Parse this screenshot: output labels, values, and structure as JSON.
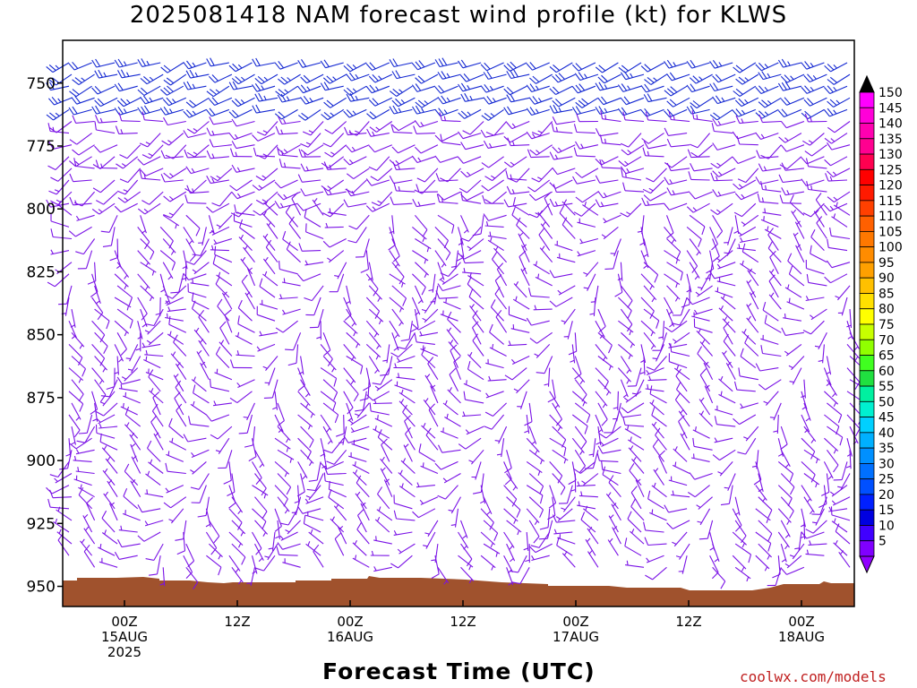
{
  "chart_data": {
    "type": "wind_barb_time_height",
    "title": "2025081418 NAM forecast wind profile (kt) for KLWS",
    "xlabel": "Forecast Time (UTC)",
    "ylabel": "",
    "y_axis": {
      "ticks": [
        750,
        775,
        800,
        825,
        850,
        875,
        900,
        925,
        950
      ],
      "range": [
        733,
        958
      ],
      "inverted": true
    },
    "x_axis": {
      "ticks": [
        {
          "line1": "00Z",
          "line2": "15AUG",
          "line3": "2025"
        },
        {
          "line1": "12Z",
          "line2": "",
          "line3": ""
        },
        {
          "line1": "00Z",
          "line2": "16AUG",
          "line3": ""
        },
        {
          "line1": "12Z",
          "line2": "",
          "line3": ""
        },
        {
          "line1": "00Z",
          "line2": "17AUG",
          "line3": ""
        },
        {
          "line1": "12Z",
          "line2": "",
          "line3": ""
        },
        {
          "line1": "00Z",
          "line2": "18AUG",
          "line3": ""
        }
      ]
    },
    "colorbar": {
      "labels": [
        "150",
        "145",
        "140",
        "135",
        "130",
        "125",
        "120",
        "115",
        "110",
        "105",
        "100",
        "95",
        "90",
        "85",
        "80",
        "75",
        "70",
        "65",
        "60",
        "55",
        "50",
        "45",
        "40",
        "35",
        "30",
        "25",
        "20",
        "15",
        "10",
        "5"
      ],
      "colors": [
        "#ff00ff",
        "#ff00d8",
        "#ff00b0",
        "#ff0090",
        "#ff0050",
        "#ff0000",
        "#ff1a00",
        "#ff4000",
        "#ff6000",
        "#ff7800",
        "#ff8c00",
        "#ffa000",
        "#ffc000",
        "#ffe000",
        "#ffff00",
        "#c8ff00",
        "#90ff00",
        "#40ff20",
        "#20e040",
        "#00f0a0",
        "#00f0d0",
        "#00d0ff",
        "#00b0ff",
        "#0090ff",
        "#0070ff",
        "#0050ff",
        "#0020ff",
        "#0000e0",
        "#4000ff",
        "#8000ff"
      ],
      "top_cap": "#000000",
      "bottom_cap": "#9000ff"
    },
    "terrain_color": "#a0522d",
    "barb_colors": {
      "upper": "#1428d2",
      "lower": "#7a12e6"
    },
    "wind_profile_kt": [
      {
        "level": 741,
        "speed_range": [
          18,
          28
        ],
        "direction_range": [
          220,
          260
        ]
      },
      {
        "level": 750,
        "speed_range": [
          15,
          25
        ],
        "direction_range": [
          220,
          260
        ]
      },
      {
        "level": 800,
        "speed_range": [
          8,
          15
        ],
        "direction_range": [
          200,
          280
        ]
      },
      {
        "level": 850,
        "speed_range": [
          5,
          12
        ],
        "direction_range": [
          150,
          300
        ]
      },
      {
        "level": 925,
        "speed_range": [
          3,
          10
        ],
        "direction_range": [
          120,
          320
        ]
      }
    ]
  },
  "credit": "coolwx.com/models"
}
